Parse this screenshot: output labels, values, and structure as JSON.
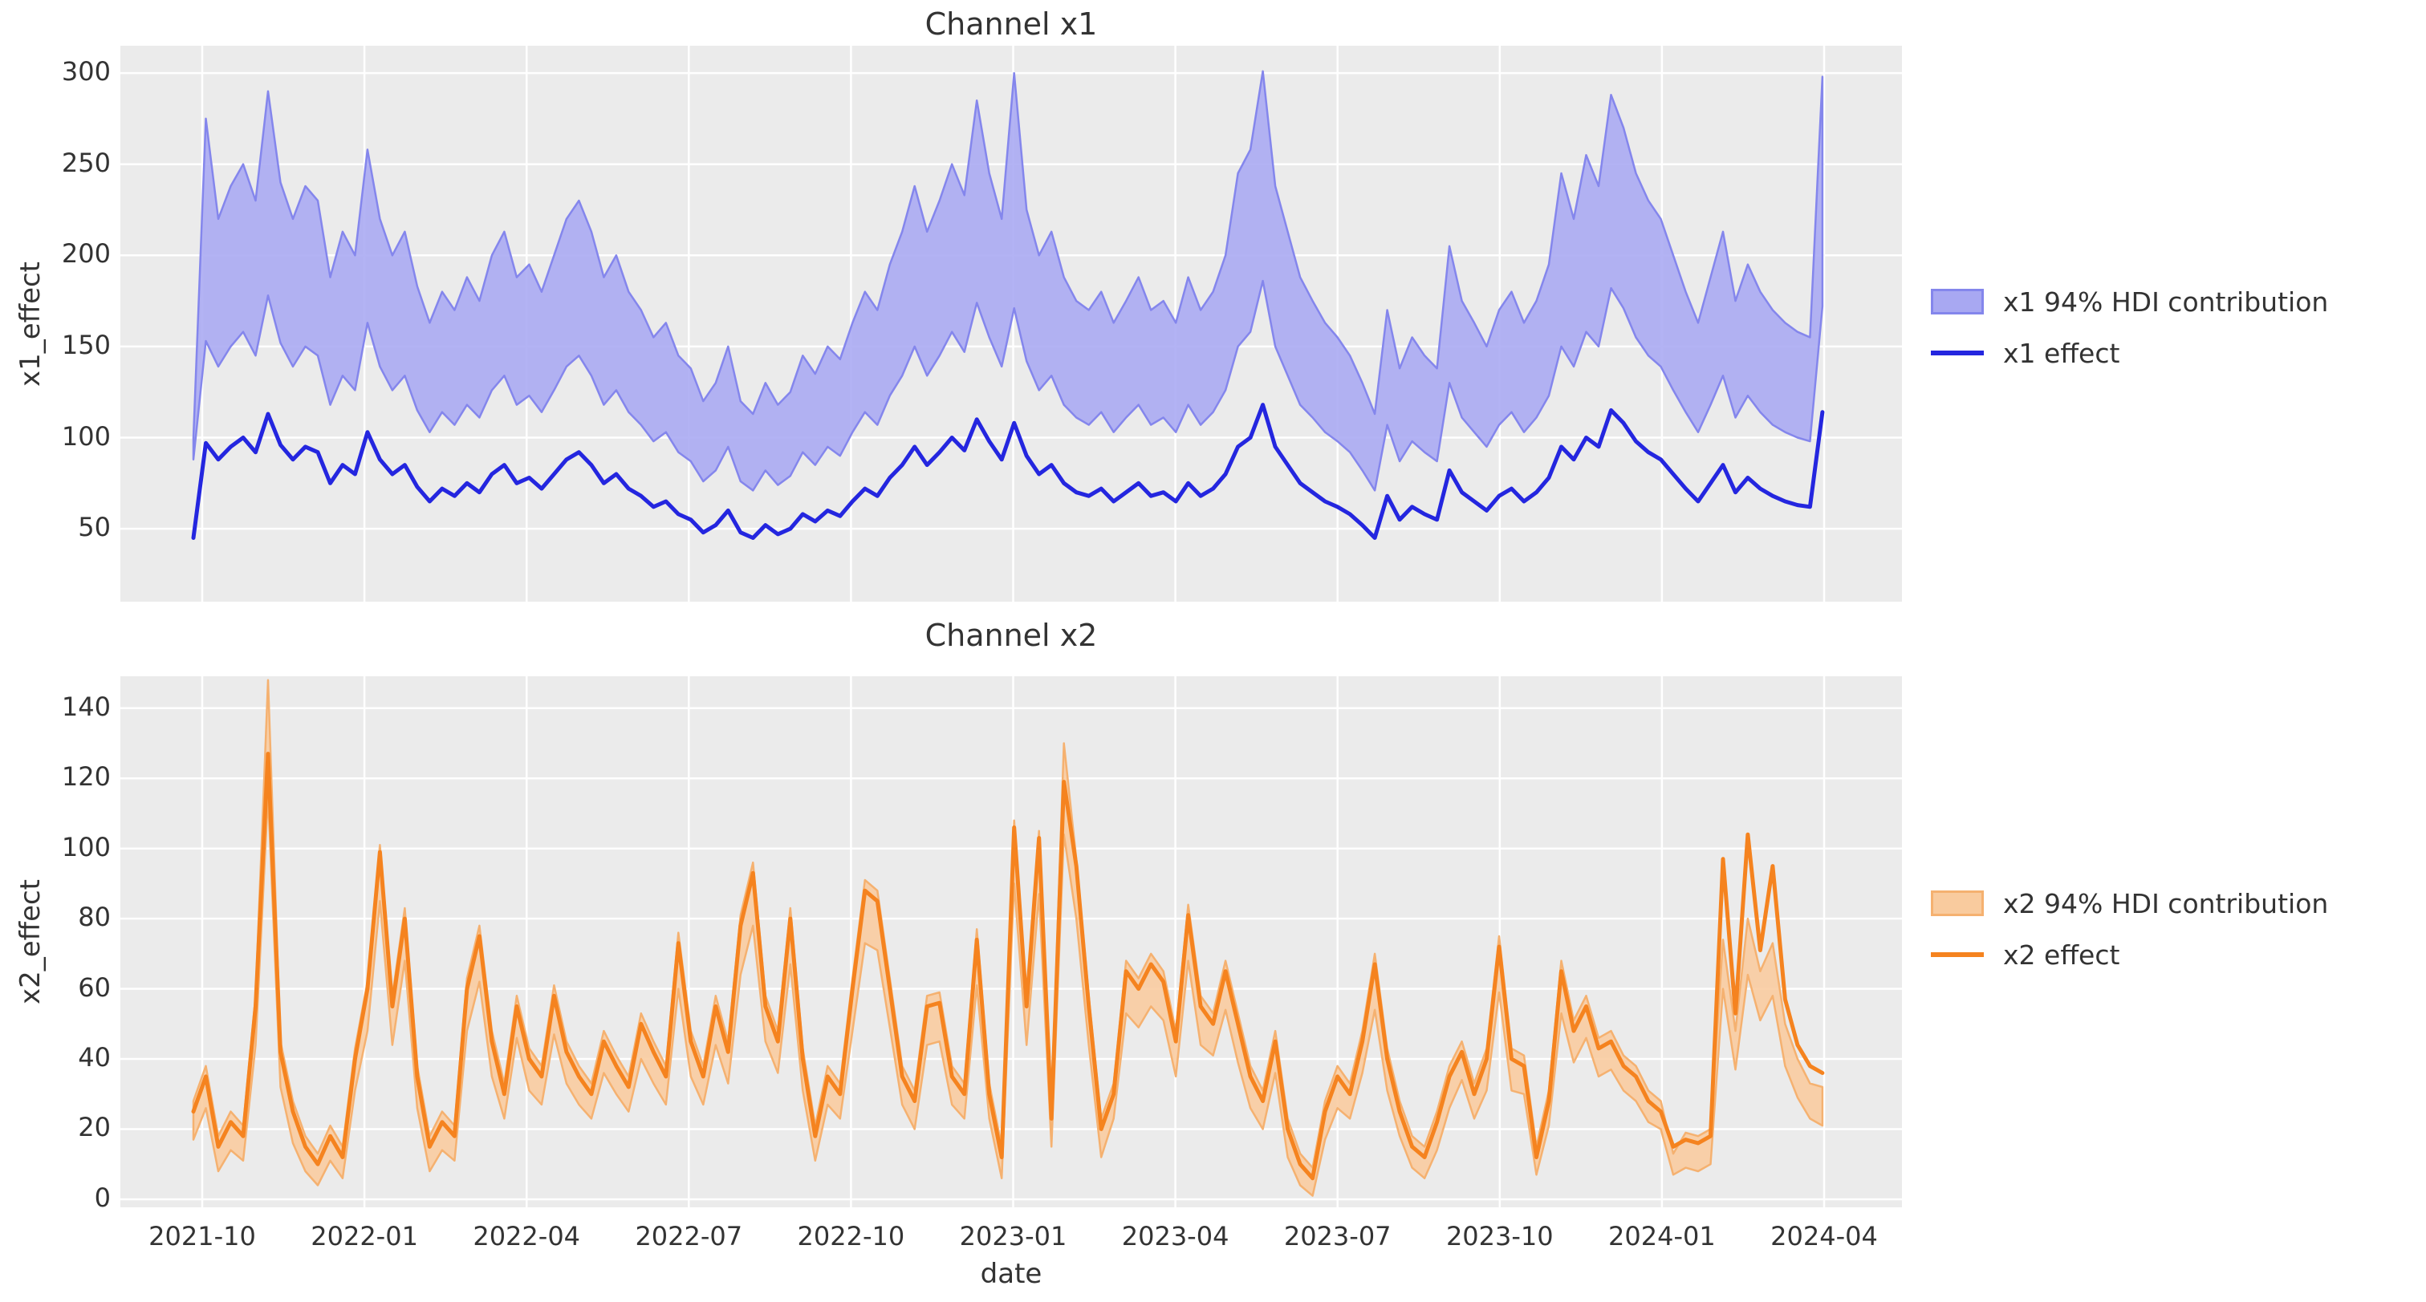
{
  "figure": {
    "background": "#ffffff",
    "plot_background": "#ebebeb",
    "grid_color": "#ffffff",
    "text_color": "#333333"
  },
  "x_axis": {
    "label": "date",
    "tick_labels": [
      "2021-10",
      "2022-01",
      "2022-04",
      "2022-07",
      "2022-10",
      "2023-01",
      "2023-04",
      "2023-07",
      "2023-10",
      "2024-01",
      "2024-04"
    ]
  },
  "chart_data": [
    {
      "type": "area",
      "title": "Channel x1",
      "ylabel": "x1_effect",
      "xlabel": "date",
      "y_ticks": [
        50,
        100,
        150,
        200,
        250,
        300
      ],
      "ylim": [
        10,
        315
      ],
      "grid": true,
      "legend_position": "right",
      "legend": [
        {
          "type": "patch",
          "label": "x1 94% HDI contribution"
        },
        {
          "type": "line",
          "label": "x1 effect"
        }
      ],
      "colors": {
        "line": "#2426df",
        "band_fill": "#a8a8f2",
        "band_edge": "#8486ec"
      },
      "x_start": "2021-09-26",
      "x_step_days": 7,
      "series": [
        {
          "name": "x1 94% HDI upper",
          "values": [
            100,
            275,
            220,
            238,
            250,
            230,
            290,
            240,
            220,
            238,
            230,
            188,
            213,
            200,
            258,
            220,
            200,
            213,
            183,
            163,
            180,
            170,
            188,
            175,
            200,
            213,
            188,
            195,
            180,
            200,
            220,
            230,
            213,
            188,
            200,
            180,
            170,
            155,
            163,
            145,
            138,
            120,
            130,
            150,
            120,
            113,
            130,
            118,
            125,
            145,
            135,
            150,
            143,
            163,
            180,
            170,
            195,
            213,
            238,
            213,
            230,
            250,
            233,
            285,
            245,
            220,
            300,
            225,
            200,
            213,
            188,
            175,
            170,
            180,
            163,
            175,
            188,
            170,
            175,
            163,
            188,
            170,
            180,
            200,
            245,
            258,
            301,
            238,
            213,
            188,
            175,
            163,
            155,
            145,
            130,
            113,
            170,
            138,
            155,
            145,
            138,
            205,
            175,
            163,
            150,
            170,
            180,
            163,
            175,
            195,
            245,
            220,
            255,
            238,
            288,
            270,
            245,
            230,
            220,
            200,
            180,
            163,
            188,
            213,
            175,
            195,
            180,
            170,
            163,
            158,
            155,
            298
          ]
        },
        {
          "name": "x1 94% HDI lower",
          "values": [
            88,
            153,
            139,
            150,
            158,
            145,
            178,
            152,
            139,
            150,
            145,
            118,
            134,
            126,
            163,
            139,
            126,
            134,
            115,
            103,
            114,
            107,
            118,
            111,
            126,
            134,
            118,
            123,
            114,
            126,
            139,
            145,
            134,
            118,
            126,
            114,
            107,
            98,
            103,
            92,
            87,
            76,
            82,
            95,
            76,
            71,
            82,
            74,
            79,
            92,
            85,
            95,
            90,
            103,
            114,
            107,
            123,
            134,
            150,
            134,
            145,
            158,
            147,
            174,
            155,
            139,
            171,
            142,
            126,
            134,
            118,
            111,
            107,
            114,
            103,
            111,
            118,
            107,
            111,
            103,
            118,
            107,
            114,
            126,
            150,
            158,
            186,
            150,
            134,
            118,
            111,
            103,
            98,
            92,
            82,
            71,
            107,
            87,
            98,
            92,
            87,
            130,
            111,
            103,
            95,
            107,
            114,
            103,
            111,
            123,
            150,
            139,
            158,
            150,
            182,
            171,
            155,
            145,
            139,
            126,
            114,
            103,
            118,
            134,
            111,
            123,
            114,
            107,
            103,
            100,
            98,
            172
          ]
        },
        {
          "name": "x1 effect",
          "values": [
            45,
            97,
            88,
            95,
            100,
            92,
            113,
            96,
            88,
            95,
            92,
            75,
            85,
            80,
            103,
            88,
            80,
            85,
            73,
            65,
            72,
            68,
            75,
            70,
            80,
            85,
            75,
            78,
            72,
            80,
            88,
            92,
            85,
            75,
            80,
            72,
            68,
            62,
            65,
            58,
            55,
            48,
            52,
            60,
            48,
            45,
            52,
            47,
            50,
            58,
            54,
            60,
            57,
            65,
            72,
            68,
            78,
            85,
            95,
            85,
            92,
            100,
            93,
            110,
            98,
            88,
            108,
            90,
            80,
            85,
            75,
            70,
            68,
            72,
            65,
            70,
            75,
            68,
            70,
            65,
            75,
            68,
            72,
            80,
            95,
            100,
            118,
            95,
            85,
            75,
            70,
            65,
            62,
            58,
            52,
            45,
            68,
            55,
            62,
            58,
            55,
            82,
            70,
            65,
            60,
            68,
            72,
            65,
            70,
            78,
            95,
            88,
            100,
            95,
            115,
            108,
            98,
            92,
            88,
            80,
            72,
            65,
            75,
            85,
            70,
            78,
            72,
            68,
            65,
            63,
            62,
            114
          ]
        }
      ]
    },
    {
      "type": "area",
      "title": "Channel x2",
      "ylabel": "x2_effect",
      "xlabel": "date",
      "y_ticks": [
        0,
        20,
        40,
        60,
        80,
        100,
        120,
        140
      ],
      "ylim": [
        -2.3,
        149.1
      ],
      "grid": true,
      "legend_position": "right",
      "legend": [
        {
          "type": "patch",
          "label": "x2 94% HDI contribution"
        },
        {
          "type": "line",
          "label": "x2 effect"
        }
      ],
      "colors": {
        "line": "#f5831f",
        "band_fill": "#f9cb9e",
        "band_edge": "#f5b170"
      },
      "x_start": "2021-09-26",
      "x_step_days": 7,
      "series": [
        {
          "name": "x2 94% HDI upper",
          "values": [
            28,
            38,
            18,
            25,
            21,
            58,
            148,
            45,
            28,
            18,
            13,
            21,
            15,
            43,
            62,
            101,
            58,
            83,
            38,
            18,
            25,
            21,
            63,
            78,
            48,
            33,
            58,
            43,
            38,
            61,
            45,
            38,
            33,
            48,
            41,
            35,
            53,
            45,
            38,
            76,
            48,
            38,
            58,
            45,
            81,
            96,
            58,
            48,
            83,
            43,
            21,
            38,
            33,
            63,
            91,
            88,
            63,
            38,
            31,
            58,
            59,
            38,
            33,
            77,
            33,
            15,
            108,
            58,
            105,
            26,
            130,
            97,
            58,
            23,
            33,
            68,
            63,
            70,
            65,
            48,
            84,
            58,
            53,
            68,
            53,
            38,
            31,
            48,
            23,
            13,
            9,
            28,
            38,
            33,
            48,
            70,
            43,
            28,
            18,
            15,
            25,
            38,
            45,
            33,
            43,
            75,
            43,
            41,
            15,
            31,
            68,
            51,
            58,
            46,
            48,
            41,
            38,
            31,
            28,
            13,
            19,
            18,
            20,
            74,
            48,
            80,
            65,
            73,
            50,
            40,
            33,
            32
          ]
        },
        {
          "name": "x2 94% HDI lower",
          "values": [
            17,
            26,
            8,
            14,
            11,
            44,
            115,
            32,
            16,
            8,
            4,
            11,
            6,
            31,
            48,
            85,
            44,
            68,
            26,
            8,
            14,
            11,
            48,
            62,
            35,
            23,
            46,
            31,
            27,
            47,
            33,
            27,
            23,
            36,
            30,
            25,
            40,
            33,
            27,
            60,
            35,
            27,
            44,
            33,
            64,
            78,
            45,
            36,
            67,
            31,
            11,
            27,
            23,
            48,
            73,
            71,
            49,
            27,
            20,
            44,
            45,
            27,
            23,
            61,
            23,
            6,
            90,
            44,
            87,
            15,
            104,
            80,
            44,
            12,
            23,
            53,
            49,
            55,
            51,
            35,
            68,
            44,
            41,
            54,
            39,
            26,
            20,
            36,
            12,
            4,
            1,
            17,
            26,
            23,
            36,
            54,
            31,
            18,
            9,
            6,
            14,
            26,
            34,
            23,
            31,
            59,
            31,
            30,
            7,
            21,
            53,
            39,
            46,
            35,
            37,
            31,
            28,
            22,
            20,
            7,
            9,
            8,
            10,
            60,
            37,
            64,
            51,
            58,
            38,
            29,
            23,
            21
          ]
        },
        {
          "name": "x2 effect",
          "values": [
            25,
            35,
            15,
            22,
            18,
            55,
            127,
            42,
            25,
            15,
            10,
            18,
            12,
            40,
            60,
            99,
            55,
            80,
            35,
            15,
            22,
            18,
            60,
            75,
            45,
            30,
            55,
            40,
            35,
            58,
            42,
            35,
            30,
            45,
            38,
            32,
            50,
            42,
            35,
            73,
            45,
            35,
            55,
            42,
            78,
            93,
            55,
            45,
            80,
            40,
            18,
            35,
            30,
            60,
            88,
            85,
            60,
            35,
            28,
            55,
            56,
            35,
            30,
            74,
            30,
            12,
            106,
            55,
            103,
            23,
            119,
            95,
            55,
            20,
            30,
            65,
            60,
            67,
            62,
            45,
            81,
            55,
            50,
            65,
            50,
            35,
            28,
            45,
            20,
            10,
            6,
            25,
            35,
            30,
            45,
            67,
            40,
            25,
            15,
            12,
            22,
            35,
            42,
            30,
            40,
            72,
            40,
            38,
            12,
            28,
            65,
            48,
            55,
            43,
            45,
            38,
            35,
            28,
            25,
            15,
            17,
            16,
            18,
            97,
            53,
            104,
            71,
            95,
            57,
            44,
            38,
            36
          ]
        }
      ]
    }
  ]
}
